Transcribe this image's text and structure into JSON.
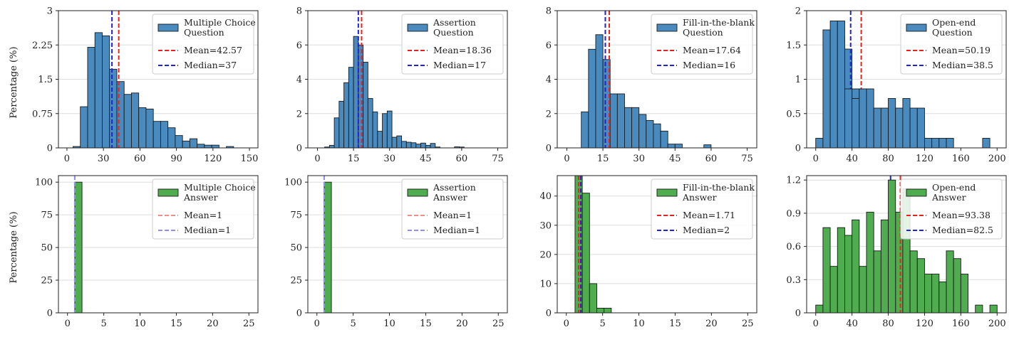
{
  "colors": {
    "question_bar": "#4a8bbf",
    "answer_bar": "#4fad50",
    "bar_edge": "#1a1a1a",
    "mean_line": "#e8231f",
    "median_line": "#1f22d6",
    "mean_line_faded": "#f28d8b",
    "median_line_faded": "#8f8ff0",
    "grid": "#dddddd"
  },
  "y_axis_label": "Percentage (%)",
  "chart_data": [
    {
      "type": "bar",
      "row": 0,
      "col": 0,
      "color_key": "question_bar",
      "legend": [
        "Multiple Choice",
        "Question"
      ],
      "mean_label": "Mean=42.57",
      "median_label": "Median=37",
      "mean": 42.57,
      "median": 37,
      "xlim": [
        -7,
        157
      ],
      "ylim": [
        0,
        3
      ],
      "xticks": [
        0,
        30,
        60,
        90,
        120,
        150
      ],
      "xtick_labels": [
        "0",
        "30",
        "60",
        "90",
        "120",
        "150"
      ],
      "yticks": [
        0,
        0.75,
        1.5,
        2.25,
        3
      ],
      "ytick_labels": [
        "0",
        "0.75",
        "1.5",
        "2.25",
        "3"
      ],
      "bins": [
        [
          5,
          11,
          0.03
        ],
        [
          11,
          17,
          0.9
        ],
        [
          17,
          23,
          2.2
        ],
        [
          23,
          29,
          2.52
        ],
        [
          29,
          35,
          2.45
        ],
        [
          35,
          41,
          1.72
        ],
        [
          41,
          47,
          1.45
        ],
        [
          47,
          53,
          1.17
        ],
        [
          53,
          59,
          1.2
        ],
        [
          59,
          65,
          0.88
        ],
        [
          65,
          71,
          0.85
        ],
        [
          71,
          77,
          0.58
        ],
        [
          77,
          83,
          0.58
        ],
        [
          83,
          89,
          0.44
        ],
        [
          89,
          95,
          0.27
        ],
        [
          95,
          101,
          0.15
        ],
        [
          101,
          107,
          0.2
        ],
        [
          107,
          113,
          0.08
        ],
        [
          113,
          119,
          0.06
        ],
        [
          119,
          125,
          0.06
        ],
        [
          131,
          137,
          0.03
        ]
      ]
    },
    {
      "type": "bar",
      "row": 0,
      "col": 1,
      "color_key": "question_bar",
      "legend": [
        "Assertion",
        "Question"
      ],
      "mean_label": "Mean=18.36",
      "median_label": "Median=17",
      "mean": 18.36,
      "median": 17,
      "xlim": [
        -4,
        79
      ],
      "ylim": [
        0,
        8
      ],
      "xticks": [
        0,
        15,
        30,
        45,
        60,
        75
      ],
      "xtick_labels": [
        "0",
        "15",
        "30",
        "45",
        "60",
        "75"
      ],
      "yticks": [
        0,
        2,
        4,
        6,
        8
      ],
      "ytick_labels": [
        "0",
        "2",
        "4",
        "6",
        "8"
      ],
      "bins": [
        [
          3,
          5,
          0.05
        ],
        [
          5,
          7,
          0.15
        ],
        [
          7,
          9,
          1.75
        ],
        [
          9,
          11,
          2.72
        ],
        [
          11,
          13,
          3.8
        ],
        [
          13,
          15,
          4.7
        ],
        [
          15,
          17,
          6.5
        ],
        [
          17,
          19,
          6.0
        ],
        [
          19,
          21,
          5.0
        ],
        [
          21,
          23,
          2.88
        ],
        [
          23,
          25,
          2.1
        ],
        [
          25,
          27,
          0.97
        ],
        [
          27,
          29,
          2.0
        ],
        [
          29,
          31,
          2.15
        ],
        [
          31,
          33,
          0.62
        ],
        [
          33,
          35,
          0.7
        ],
        [
          35,
          37,
          0.38
        ],
        [
          37,
          39,
          0.33
        ],
        [
          39,
          41,
          0.3
        ],
        [
          41,
          43,
          0.22
        ],
        [
          43,
          45,
          0.28
        ],
        [
          45,
          47,
          0.15
        ],
        [
          47,
          49,
          0.26
        ],
        [
          49,
          51,
          0.05
        ],
        [
          57,
          59,
          0.06
        ],
        [
          59,
          61,
          0.05
        ]
      ]
    },
    {
      "type": "bar",
      "row": 0,
      "col": 2,
      "color_key": "question_bar",
      "legend": [
        "Fill-in-the-blank",
        "Question"
      ],
      "mean_label": "Mean=17.64",
      "median_label": "Median=16",
      "mean": 17.64,
      "median": 16,
      "xlim": [
        -4,
        79
      ],
      "ylim": [
        0,
        8
      ],
      "xticks": [
        0,
        15,
        30,
        45,
        60,
        75
      ],
      "xtick_labels": [
        "0",
        "15",
        "30",
        "45",
        "60",
        "75"
      ],
      "yticks": [
        0,
        2,
        4,
        6,
        8
      ],
      "ytick_labels": [
        "0",
        "2",
        "4",
        "6",
        "8"
      ],
      "bins": [
        [
          6,
          9,
          2.1
        ],
        [
          9,
          12,
          5.75
        ],
        [
          12,
          15,
          6.6
        ],
        [
          15,
          18,
          5.15
        ],
        [
          18,
          21,
          3.15
        ],
        [
          21,
          24,
          3.15
        ],
        [
          24,
          27,
          2.35
        ],
        [
          27,
          30,
          2.35
        ],
        [
          30,
          33,
          1.95
        ],
        [
          33,
          36,
          1.6
        ],
        [
          36,
          39,
          1.4
        ],
        [
          39,
          42,
          0.98
        ],
        [
          42,
          45,
          0.22
        ],
        [
          45,
          48,
          0.22
        ],
        [
          57,
          60,
          0.18
        ]
      ]
    },
    {
      "type": "bar",
      "row": 0,
      "col": 3,
      "color_key": "question_bar",
      "legend": [
        "Open-end",
        "Question"
      ],
      "mean_label": "Mean=50.19",
      "median_label": "Median=38.5",
      "mean": 50.19,
      "median": 38.5,
      "xlim": [
        -10,
        210
      ],
      "ylim": [
        0,
        2
      ],
      "xticks": [
        0,
        40,
        80,
        120,
        160,
        200
      ],
      "xtick_labels": [
        "0",
        "40",
        "80",
        "120",
        "160",
        "200"
      ],
      "yticks": [
        0,
        0.5,
        1,
        1.5,
        2
      ],
      "ytick_labels": [
        "0",
        "0.5",
        "1",
        "1.5",
        "2"
      ],
      "bins": [
        [
          0,
          8,
          0.14
        ],
        [
          8,
          16,
          1.72
        ],
        [
          16,
          24,
          1.33
        ],
        [
          24,
          32,
          1.62
        ],
        [
          32,
          40,
          1.44
        ],
        [
          40,
          48,
          0.86
        ],
        [
          48,
          56,
          0.72
        ],
        [
          56,
          64,
          0.86
        ],
        [
          64,
          72,
          0.58
        ],
        [
          72,
          80,
          0.58
        ],
        [
          80,
          88,
          0.72
        ],
        [
          88,
          96,
          0.58
        ],
        [
          96,
          104,
          0.72
        ],
        [
          104,
          112,
          0.58
        ],
        [
          112,
          120,
          0.58
        ],
        [
          120,
          128,
          0.14
        ],
        [
          128,
          136,
          0.14
        ],
        [
          136,
          144,
          0.14
        ],
        [
          144,
          152,
          0.14
        ],
        [
          184,
          192,
          0.14
        ]
      ],
      "overlay_bins": [
        [
          16,
          24,
          1.85
        ],
        [
          24,
          32,
          1.85
        ],
        [
          32,
          40,
          0.86
        ],
        [
          40,
          48,
          0.72
        ],
        [
          48,
          56,
          0.86
        ]
      ]
    },
    {
      "type": "bar",
      "row": 1,
      "col": 0,
      "color_key": "answer_bar",
      "faded_lines": true,
      "legend": [
        "Multiple Choice",
        "Answer"
      ],
      "mean_label": "Mean=1",
      "median_label": "Median=1",
      "mean": 1,
      "median": 1,
      "xlim": [
        -1.25,
        26.25
      ],
      "ylim": [
        0,
        105
      ],
      "xticks": [
        0,
        5,
        10,
        15,
        20,
        25
      ],
      "xtick_labels": [
        "0",
        "5",
        "10",
        "15",
        "20",
        "25"
      ],
      "yticks": [
        0,
        25,
        50,
        75,
        100
      ],
      "ytick_labels": [
        "0",
        "25",
        "50",
        "75",
        "100"
      ],
      "bins": [
        [
          1,
          2,
          100
        ]
      ]
    },
    {
      "type": "bar",
      "row": 1,
      "col": 1,
      "color_key": "answer_bar",
      "faded_lines": true,
      "legend": [
        "Assertion",
        "Answer"
      ],
      "mean_label": "Mean=1",
      "median_label": "Median=1",
      "mean": 1,
      "median": 1,
      "xlim": [
        -1.25,
        26.25
      ],
      "ylim": [
        0,
        105
      ],
      "xticks": [
        0,
        5,
        10,
        15,
        20,
        25
      ],
      "xtick_labels": [
        "0",
        "5",
        "10",
        "15",
        "20",
        "25"
      ],
      "yticks": [
        0,
        25,
        50,
        75,
        100
      ],
      "ytick_labels": [
        "0",
        "25",
        "50",
        "75",
        "100"
      ],
      "bins": [
        [
          1,
          2,
          100
        ]
      ]
    },
    {
      "type": "bar",
      "row": 1,
      "col": 2,
      "color_key": "answer_bar",
      "legend": [
        "Fill-in-the-blank",
        "Answer"
      ],
      "mean_label": "Mean=1.71",
      "median_label": "Median=2",
      "mean": 1.71,
      "median": 2,
      "xlim": [
        -1.25,
        26.25
      ],
      "ylim": [
        0,
        47
      ],
      "xticks": [
        0,
        5,
        10,
        15,
        20,
        25
      ],
      "xtick_labels": [
        "0",
        "5",
        "10",
        "15",
        "20",
        "25"
      ],
      "yticks": [
        0,
        10,
        20,
        30,
        40
      ],
      "ytick_labels": [
        "0",
        "10",
        "20",
        "30",
        "40"
      ],
      "bins": [
        [
          1.2,
          2.2,
          47
        ],
        [
          2.2,
          3.2,
          41
        ],
        [
          3.2,
          4.2,
          10
        ],
        [
          4.2,
          5.2,
          1.6
        ],
        [
          5.2,
          6.2,
          1.6
        ]
      ]
    },
    {
      "type": "bar",
      "row": 1,
      "col": 3,
      "color_key": "answer_bar",
      "legend": [
        "Open-end",
        "Answer"
      ],
      "mean_label": "Mean=93.38",
      "median_label": "Median=82.5",
      "mean": 93.38,
      "median": 82.5,
      "xlim": [
        -10,
        210
      ],
      "ylim": [
        0,
        1.24
      ],
      "xticks": [
        0,
        40,
        80,
        120,
        160,
        200
      ],
      "xtick_labels": [
        "0",
        "40",
        "80",
        "120",
        "160",
        "200"
      ],
      "yticks": [
        0,
        0.3,
        0.6,
        0.9,
        1.2
      ],
      "ytick_labels": [
        "0",
        "0.3",
        "0.6",
        "0.9",
        "1.2"
      ],
      "bins": [
        [
          0,
          8,
          0.07
        ],
        [
          8,
          16,
          0.77
        ],
        [
          16,
          24,
          0.42
        ],
        [
          24,
          32,
          0.77
        ],
        [
          32,
          40,
          0.7
        ],
        [
          40,
          48,
          0.84
        ],
        [
          48,
          56,
          0.42
        ],
        [
          56,
          64,
          0.91
        ],
        [
          64,
          72,
          0.56
        ],
        [
          72,
          80,
          0.84
        ],
        [
          80,
          88,
          0.42
        ],
        [
          88,
          96,
          0.91
        ],
        [
          96,
          104,
          1.12
        ],
        [
          104,
          112,
          0.56
        ],
        [
          112,
          120,
          0.49
        ],
        [
          120,
          128,
          0.35
        ],
        [
          128,
          136,
          0.35
        ],
        [
          136,
          144,
          0.28
        ],
        [
          144,
          152,
          0.56
        ],
        [
          152,
          160,
          0.49
        ],
        [
          160,
          168,
          0.35
        ],
        [
          176,
          184,
          0.07
        ],
        [
          192,
          200,
          0.07
        ]
      ],
      "overlay_bins": [
        [
          80,
          88,
          1.2
        ]
      ]
    }
  ]
}
